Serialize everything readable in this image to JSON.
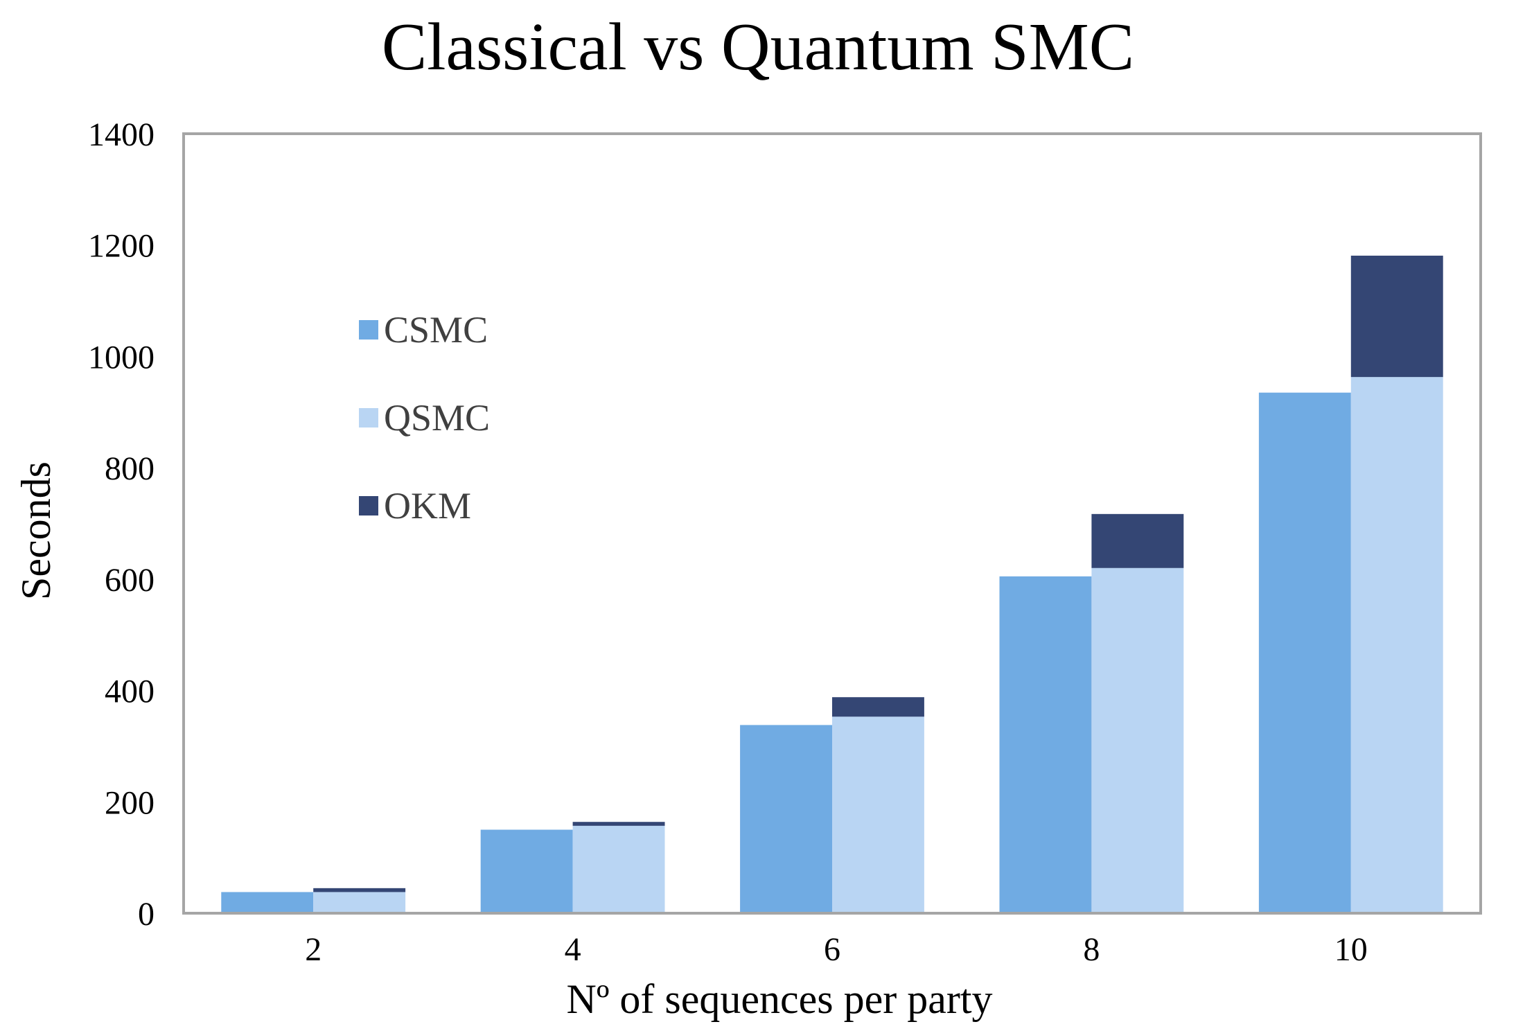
{
  "chart_data": {
    "type": "bar",
    "title": "Classical vs Quantum SMC",
    "xlabel": "Nº of sequences per party",
    "ylabel": "Seconds",
    "categories": [
      "2",
      "4",
      "6",
      "8",
      "10"
    ],
    "ylim": [
      0,
      1400
    ],
    "yticks": [
      "0",
      "200",
      "400",
      "600",
      "800",
      "1000",
      "1200",
      "1400"
    ],
    "grid": false,
    "legend_position": "upper-left-inside",
    "series": [
      {
        "name": "CSMC",
        "stack": "classical",
        "color": "#70ABE3",
        "values": [
          38,
          150,
          338,
          605,
          935
        ]
      },
      {
        "name": "QSMC",
        "stack": "quantum",
        "color": "#B9D5F3",
        "values": [
          38,
          157,
          353,
          620,
          963
        ]
      },
      {
        "name": "OKM",
        "stack": "quantum",
        "color": "#344674",
        "values": [
          7,
          7,
          35,
          97,
          218
        ]
      }
    ],
    "colors": {
      "axis": "#A5A5A5",
      "text": "#000000",
      "legend_text": "#404040"
    }
  }
}
